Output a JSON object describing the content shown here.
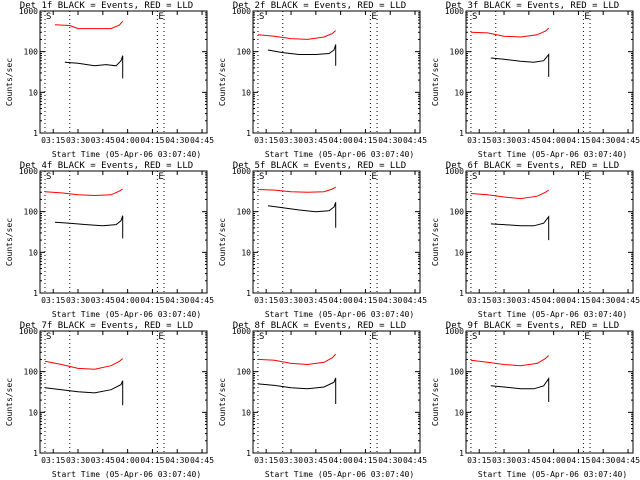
{
  "chart_data": [
    {
      "type": "line",
      "title": "Det 1f BLACK = Events, RED = LLD",
      "xlabel": "Start Time (05-Apr-06 03:07:40)",
      "ylabel": "Counts/sec",
      "yscale": "log",
      "ylim": [
        1,
        1000
      ],
      "xlim": [
        "03:07",
        "04:48"
      ],
      "xticks": [
        "03:15",
        "03:30",
        "03:45",
        "04:00",
        "04:15",
        "04:30",
        "04:45"
      ],
      "yticks": [
        "1",
        "10",
        "100",
        "1000"
      ],
      "markers": [
        {
          "time": "03:10",
          "label": "S"
        },
        {
          "time": "03:25",
          "label": ""
        },
        {
          "time": "04:18",
          "label": "E"
        },
        {
          "time": "04:22",
          "label": ""
        }
      ],
      "series": [
        {
          "color": "#ff0000",
          "x": [
            "03:16",
            "03:25",
            "03:30",
            "03:40",
            "03:50",
            "03:55",
            "03:57"
          ],
          "y": [
            460,
            440,
            370,
            370,
            370,
            450,
            560
          ]
        },
        {
          "color": "#000000",
          "x": [
            "03:22",
            "03:30",
            "03:40",
            "03:47",
            "03:53",
            "03:56",
            "03:57",
            "03:57"
          ],
          "y": [
            55,
            52,
            45,
            48,
            45,
            60,
            80,
            22
          ]
        }
      ]
    },
    {
      "type": "line",
      "title": "Det 2f BLACK = Events, RED = LLD",
      "xlabel": "Start Time (05-Apr-06 03:07:40)",
      "ylabel": "Counts/sec",
      "yscale": "log",
      "ylim": [
        1,
        1000
      ],
      "xlim": [
        "03:07",
        "04:48"
      ],
      "xticks": [
        "03:15",
        "03:30",
        "03:45",
        "04:00",
        "04:15",
        "04:30",
        "04:45"
      ],
      "yticks": [
        "1",
        "10",
        "100",
        "1000"
      ],
      "markers": [
        {
          "time": "03:10",
          "label": "S"
        },
        {
          "time": "03:25",
          "label": ""
        },
        {
          "time": "04:18",
          "label": "E"
        },
        {
          "time": "04:22",
          "label": ""
        }
      ],
      "series": [
        {
          "color": "#ff0000",
          "x": [
            "03:10",
            "03:20",
            "03:30",
            "03:40",
            "03:50",
            "03:55",
            "03:57"
          ],
          "y": [
            260,
            240,
            210,
            200,
            230,
            280,
            330
          ]
        },
        {
          "color": "#000000",
          "x": [
            "03:16",
            "03:25",
            "03:35",
            "03:45",
            "03:53",
            "03:56",
            "03:57",
            "03:57"
          ],
          "y": [
            110,
            95,
            85,
            85,
            90,
            110,
            150,
            45
          ]
        }
      ]
    },
    {
      "type": "line",
      "title": "Det 3f BLACK = Events, RED = LLD",
      "xlabel": "Start Time (05-Apr-06 03:07:40)",
      "ylabel": "Counts/sec",
      "yscale": "log",
      "ylim": [
        1,
        1000
      ],
      "xlim": [
        "03:07",
        "04:48"
      ],
      "xticks": [
        "03:15",
        "03:30",
        "03:45",
        "04:00",
        "04:15",
        "04:30",
        "04:45"
      ],
      "yticks": [
        "1",
        "10",
        "100",
        "1000"
      ],
      "markers": [
        {
          "time": "03:10",
          "label": "S"
        },
        {
          "time": "03:25",
          "label": ""
        },
        {
          "time": "04:18",
          "label": "E"
        },
        {
          "time": "04:22",
          "label": ""
        }
      ],
      "series": [
        {
          "color": "#ff0000",
          "x": [
            "03:10",
            "03:20",
            "03:30",
            "03:40",
            "03:50",
            "03:55",
            "03:57"
          ],
          "y": [
            300,
            290,
            240,
            230,
            260,
            320,
            380
          ]
        },
        {
          "color": "#000000",
          "x": [
            "03:22",
            "03:30",
            "03:40",
            "03:48",
            "03:54",
            "03:57",
            "03:57"
          ],
          "y": [
            70,
            65,
            58,
            55,
            60,
            85,
            24
          ]
        }
      ]
    },
    {
      "type": "line",
      "title": "Det 4f BLACK = Events, RED = LLD",
      "xlabel": "Start Time (05-Apr-06 03:07:40)",
      "ylabel": "Counts/sec",
      "yscale": "log",
      "ylim": [
        1,
        1000
      ],
      "xlim": [
        "03:07",
        "04:48"
      ],
      "xticks": [
        "03:15",
        "03:30",
        "03:45",
        "04:00",
        "04:15",
        "04:30",
        "04:45"
      ],
      "yticks": [
        "1",
        "10",
        "100",
        "1000"
      ],
      "markers": [
        {
          "time": "03:10",
          "label": "S"
        },
        {
          "time": "03:25",
          "label": ""
        },
        {
          "time": "04:18",
          "label": "E"
        },
        {
          "time": "04:22",
          "label": ""
        }
      ],
      "series": [
        {
          "color": "#ff0000",
          "x": [
            "03:10",
            "03:20",
            "03:30",
            "03:40",
            "03:50",
            "03:55",
            "03:57"
          ],
          "y": [
            310,
            290,
            260,
            250,
            260,
            320,
            360
          ]
        },
        {
          "color": "#000000",
          "x": [
            "03:16",
            "03:25",
            "03:35",
            "03:45",
            "03:53",
            "03:56",
            "03:57",
            "03:57"
          ],
          "y": [
            55,
            52,
            48,
            45,
            48,
            60,
            80,
            22
          ]
        }
      ]
    },
    {
      "type": "line",
      "title": "Det 5f BLACK = Events, RED = LLD",
      "xlabel": "Start Time (05-Apr-06 03:07:40)",
      "ylabel": "Counts/sec",
      "yscale": "log",
      "ylim": [
        1,
        1000
      ],
      "xlim": [
        "03:07",
        "04:48"
      ],
      "xticks": [
        "03:15",
        "03:30",
        "03:45",
        "04:00",
        "04:15",
        "04:30",
        "04:45"
      ],
      "yticks": [
        "1",
        "10",
        "100",
        "1000"
      ],
      "markers": [
        {
          "time": "03:10",
          "label": "S"
        },
        {
          "time": "03:25",
          "label": ""
        },
        {
          "time": "04:18",
          "label": "E"
        },
        {
          "time": "04:22",
          "label": ""
        }
      ],
      "series": [
        {
          "color": "#ff0000",
          "x": [
            "03:10",
            "03:20",
            "03:30",
            "03:40",
            "03:50",
            "03:55",
            "03:57"
          ],
          "y": [
            350,
            340,
            310,
            300,
            310,
            360,
            400
          ]
        },
        {
          "color": "#000000",
          "x": [
            "03:16",
            "03:25",
            "03:35",
            "03:45",
            "03:53",
            "03:56",
            "03:57",
            "03:57"
          ],
          "y": [
            140,
            125,
            110,
            100,
            105,
            130,
            170,
            40
          ]
        }
      ]
    },
    {
      "type": "line",
      "title": "Det 6f BLACK = Events, RED = LLD",
      "xlabel": "Start Time (05-Apr-06 03:07:40)",
      "ylabel": "Counts/sec",
      "yscale": "log",
      "ylim": [
        1,
        1000
      ],
      "xlim": [
        "03:07",
        "04:48"
      ],
      "xticks": [
        "03:15",
        "03:30",
        "03:45",
        "04:00",
        "04:15",
        "04:30",
        "04:45"
      ],
      "yticks": [
        "1",
        "10",
        "100",
        "1000"
      ],
      "markers": [
        {
          "time": "03:10",
          "label": "S"
        },
        {
          "time": "03:25",
          "label": ""
        },
        {
          "time": "04:18",
          "label": "E"
        },
        {
          "time": "04:22",
          "label": ""
        }
      ],
      "series": [
        {
          "color": "#ff0000",
          "x": [
            "03:10",
            "03:20",
            "03:30",
            "03:40",
            "03:50",
            "03:55",
            "03:57"
          ],
          "y": [
            280,
            260,
            230,
            210,
            240,
            300,
            340
          ]
        },
        {
          "color": "#000000",
          "x": [
            "03:22",
            "03:30",
            "03:40",
            "03:48",
            "03:54",
            "03:57",
            "03:57"
          ],
          "y": [
            50,
            48,
            45,
            45,
            52,
            75,
            20
          ]
        }
      ]
    },
    {
      "type": "line",
      "title": "Det 7f BLACK = Events, RED = LLD",
      "xlabel": "Start Time (05-Apr-06 03:07:40)",
      "ylabel": "Counts/sec",
      "yscale": "log",
      "ylim": [
        1,
        1000
      ],
      "xlim": [
        "03:07",
        "04:48"
      ],
      "xticks": [
        "03:15",
        "03:30",
        "03:45",
        "04:00",
        "04:15",
        "04:30",
        "04:45"
      ],
      "yticks": [
        "1",
        "10",
        "100",
        "1000"
      ],
      "markers": [
        {
          "time": "03:10",
          "label": "S"
        },
        {
          "time": "03:25",
          "label": ""
        },
        {
          "time": "04:18",
          "label": "E"
        },
        {
          "time": "04:22",
          "label": ""
        }
      ],
      "series": [
        {
          "color": "#ff0000",
          "x": [
            "03:10",
            "03:20",
            "03:30",
            "03:40",
            "03:50",
            "03:55",
            "03:57"
          ],
          "y": [
            180,
            150,
            120,
            115,
            140,
            180,
            210
          ]
        },
        {
          "color": "#000000",
          "x": [
            "03:10",
            "03:20",
            "03:30",
            "03:40",
            "03:50",
            "03:56",
            "03:57",
            "03:57"
          ],
          "y": [
            40,
            36,
            32,
            30,
            36,
            48,
            60,
            15
          ]
        }
      ]
    },
    {
      "type": "line",
      "title": "Det 8f BLACK = Events, RED = LLD",
      "xlabel": "Start Time (05-Apr-06 03:07:40)",
      "ylabel": "Counts/sec",
      "yscale": "log",
      "ylim": [
        1,
        1000
      ],
      "xlim": [
        "03:07",
        "04:48"
      ],
      "xticks": [
        "03:15",
        "03:30",
        "03:45",
        "04:00",
        "04:15",
        "04:30",
        "04:45"
      ],
      "yticks": [
        "1",
        "10",
        "100",
        "1000"
      ],
      "markers": [
        {
          "time": "03:10",
          "label": "S"
        },
        {
          "time": "03:25",
          "label": ""
        },
        {
          "time": "04:18",
          "label": "E"
        },
        {
          "time": "04:22",
          "label": ""
        }
      ],
      "series": [
        {
          "color": "#ff0000",
          "x": [
            "03:10",
            "03:20",
            "03:30",
            "03:40",
            "03:50",
            "03:55",
            "03:57"
          ],
          "y": [
            200,
            190,
            160,
            150,
            170,
            220,
            270
          ]
        },
        {
          "color": "#000000",
          "x": [
            "03:10",
            "03:20",
            "03:30",
            "03:40",
            "03:50",
            "03:56",
            "03:57",
            "03:57"
          ],
          "y": [
            50,
            46,
            40,
            38,
            42,
            55,
            70,
            16
          ]
        }
      ]
    },
    {
      "type": "line",
      "title": "Det 9f BLACK = Events, RED = LLD",
      "xlabel": "Start Time (05-Apr-06 03:07:40)",
      "ylabel": "Counts/sec",
      "yscale": "log",
      "ylim": [
        1,
        1000
      ],
      "xlim": [
        "03:07",
        "04:48"
      ],
      "xticks": [
        "03:15",
        "03:30",
        "03:45",
        "04:00",
        "04:15",
        "04:30",
        "04:45"
      ],
      "yticks": [
        "1",
        "10",
        "100",
        "1000"
      ],
      "markers": [
        {
          "time": "03:10",
          "label": "S"
        },
        {
          "time": "03:25",
          "label": ""
        },
        {
          "time": "04:18",
          "label": "E"
        },
        {
          "time": "04:22",
          "label": ""
        }
      ],
      "series": [
        {
          "color": "#ff0000",
          "x": [
            "03:10",
            "03:20",
            "03:30",
            "03:40",
            "03:50",
            "03:55",
            "03:57"
          ],
          "y": [
            190,
            170,
            150,
            140,
            160,
            210,
            250
          ]
        },
        {
          "color": "#000000",
          "x": [
            "03:22",
            "03:30",
            "03:40",
            "03:48",
            "03:54",
            "03:57",
            "03:57"
          ],
          "y": [
            45,
            42,
            38,
            38,
            45,
            68,
            18
          ]
        }
      ]
    }
  ]
}
